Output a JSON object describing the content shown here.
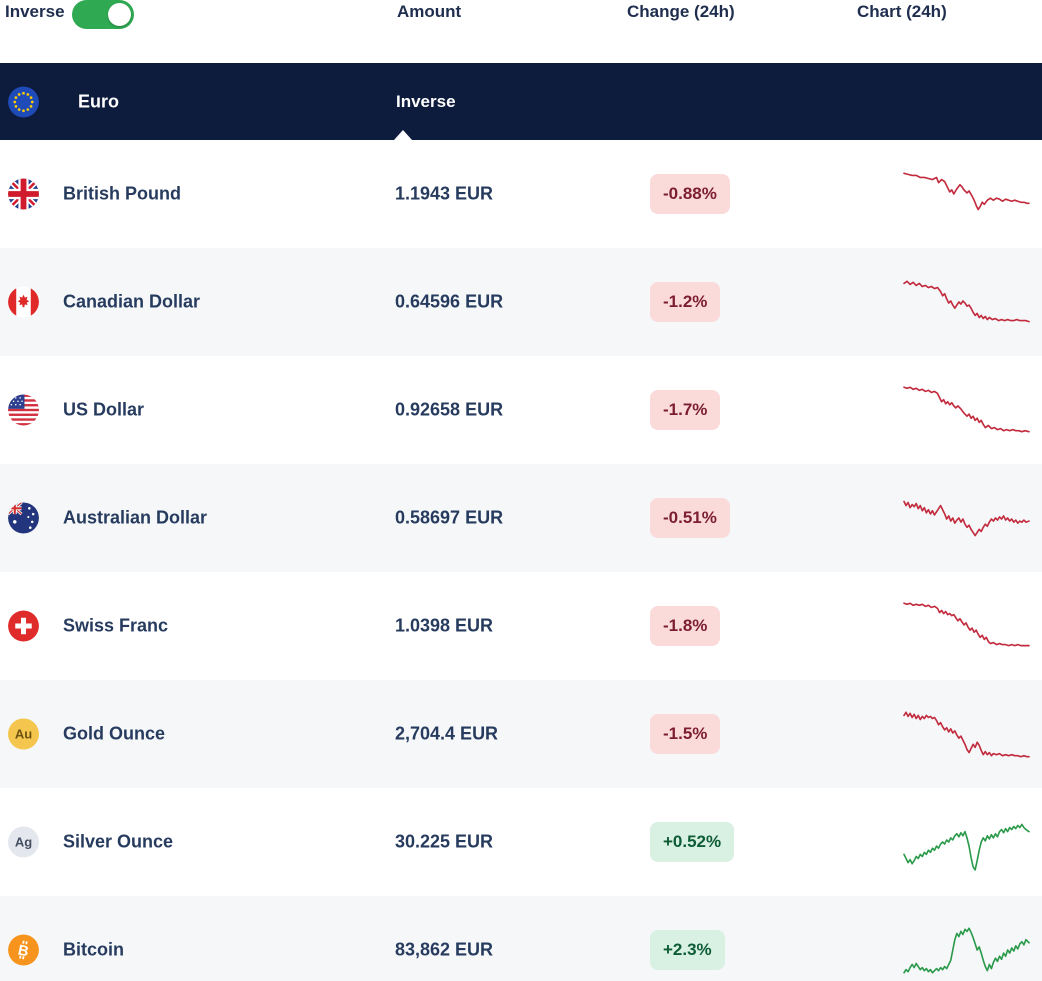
{
  "colors": {
    "navy_bar": "#0d1b3c",
    "header_text": "#1f2e4e",
    "row_text": "#263b5e",
    "row_alt_bg": "#f5f7f9",
    "toggle_on_green": "#2faa53",
    "badge_negative_bg": "#fbdada",
    "badge_negative_text": "#7c1e31",
    "badge_positive_bg": "#d8f1e2",
    "badge_positive_text": "#0e5c36",
    "sparkline_down": "#c22b3d",
    "sparkline_up": "#2c9a4b"
  },
  "header": {
    "inverse_label": "Inverse",
    "toggle_state": "on",
    "columns": [
      "Amount",
      "Change (24h)",
      "Chart (24h)"
    ]
  },
  "base": {
    "currency": "Euro",
    "flag_icon": "euro-flag-icon",
    "amount_mode_label": "Inverse"
  },
  "rows": [
    {
      "name": "British Pound",
      "icon": "uk-flag-icon",
      "amount": "1.1943 EUR",
      "change": "-0.88%",
      "direction": "down",
      "spark": "1,10 5,11 9,12 13,12 17,14 21,14 25,15 29,16 33,14 35,19 38,16 41,18 44,24 46,28 48,26 50,30 53,25 56,21 58,23 60,26 63,29 65,27 68,32 70,36 72,41 74,45 76,42 78,38 80,40 83,36 86,34 89,36 92,34 95,35 98,37 101,35 104,36 107,37 110,36 113,37 116,38 119,38 122,39 124,39"
    },
    {
      "name": "Canadian Dollar",
      "icon": "canada-flag-icon",
      "amount": "0.64596 EUR",
      "change": "-1.2%",
      "direction": "down",
      "spark": "1,12 4,10 7,13 10,11 13,14 16,12 19,15 22,14 25,16 28,15 31,17 34,16 37,20 39,24 41,22 43,27 45,31 47,29 49,33 51,36 53,33 55,30 57,32 59,29 61,31 63,34 65,33 67,36 69,40 71,43 73,41 75,45 77,43 79,46 81,44 83,47 85,45 88,47 91,46 94,48 97,47 100,48 103,47 106,48 109,48 112,47 115,48 118,48 121,48 124,49"
    },
    {
      "name": "US Dollar",
      "icon": "us-flag-icon",
      "amount": "0.92658 EUR",
      "change": "-1.7%",
      "direction": "down",
      "spark": "1,8 4,9 7,8 10,10 13,9 16,11 19,10 22,12 25,11 28,13 31,12 34,14 36,18 38,22 40,20 42,24 44,22 46,25 48,23 50,26 52,28 54,26 57,29 60,33 63,36 65,34 67,38 69,36 71,40 73,38 75,42 77,40 79,44 81,47 84,45 87,48 90,47 93,49 96,48 99,50 102,49 105,50 108,49 111,50 114,50 117,51 120,50 124,51"
    },
    {
      "name": "Australian Dollar",
      "icon": "australia-flag-icon",
      "amount": "0.58697 EUR",
      "change": "-0.51%",
      "direction": "down",
      "spark": "1,14 3,18 5,15 7,20 9,17 11,19 13,16 15,21 17,18 19,23 21,20 23,25 25,22 27,26 29,23 31,27 33,24 35,21 37,18 39,22 41,26 43,31 45,28 47,33 49,30 51,35 53,32 55,30 57,34 59,31 61,36 63,39 65,37 67,41 69,44 71,47 73,44 75,41 77,43 79,39 81,36 83,38 85,34 87,31 89,33 91,30 93,32 95,29 97,31 99,28 101,32 103,30 105,33 107,31 109,34 111,32 113,35 115,33 117,34 119,32 121,34 124,33"
    },
    {
      "name": "Swiss Franc",
      "icon": "switzerland-flag-icon",
      "amount": "1.0398 EUR",
      "change": "-1.8%",
      "direction": "down",
      "spark": "1,8 4,9 7,8 10,10 13,9 16,10 19,9 22,11 25,10 28,12 31,11 34,13 36,17 38,15 40,18 42,16 44,19 46,18 48,20 50,19 52,22 54,25 56,23 58,26 60,29 62,27 64,31 66,34 68,32 70,36 72,34 74,38 76,41 78,39 80,43 82,41 84,45 86,47 89,46 92,48 95,47 98,48 101,48 104,49 107,48 110,49 113,48 116,49 119,49 122,49 124,49"
    },
    {
      "name": "Gold Ounce",
      "icon": "gold-icon",
      "symbol": "Au",
      "amount": "2,704.4 EUR",
      "change": "-1.5%",
      "direction": "down",
      "spark": "1,12 3,9 5,13 7,10 9,14 11,11 13,15 15,12 17,16 19,13 21,15 23,12 25,14 27,13 29,15 31,14 33,17 35,21 37,19 39,23 41,26 43,24 45,28 47,25 49,29 51,27 53,31 55,34 57,32 59,36 61,40 63,45 65,48 67,44 69,40 71,43 73,38 75,41 77,46 79,50 81,47 83,50 85,48 87,51 89,49 92,50 95,49 98,51 101,50 104,51 107,50 110,51 113,51 116,52 119,51 122,52 124,52"
    },
    {
      "name": "Silver Ounce",
      "icon": "silver-icon",
      "symbol": "Ag",
      "amount": "30.225 EUR",
      "change": "+0.52%",
      "direction": "up",
      "spark": "1,42 3,46 5,50 7,47 9,51 11,48 13,44 15,46 17,42 19,44 21,40 23,42 25,38 27,40 29,36 31,38 33,34 35,36 37,32 39,30 41,32 43,28 45,30 47,26 49,28 51,24 53,22 55,25 57,21 59,24 61,20 63,26 65,34 67,45 69,54 71,57 73,48 75,38 77,30 79,26 81,29 83,24 85,27 87,23 89,26 91,22 93,25 95,20 97,18 99,21 101,17 103,20 105,16 107,18 109,15 111,17 113,14 115,16 117,13 119,16 121,18 124,20"
    },
    {
      "name": "Bitcoin",
      "icon": "bitcoin-icon",
      "symbol": "B",
      "amount": "83,862 EUR",
      "change": "+2.3%",
      "direction": "up",
      "spark": "1,52 3,49 5,51 7,47 9,44 11,47 13,43 15,46 17,49 19,47 21,50 23,48 25,51 27,49 29,52 31,50 33,48 35,50 37,47 39,49 41,46 43,48 45,44 47,40 49,30 51,20 53,14 55,17 57,12 59,15 61,10 63,12 65,9 67,13 69,18 71,24 73,30 75,27 77,33 79,40 81,46 83,50 85,44 87,48 89,42 91,38 93,41 95,36 97,39 99,33 101,36 103,30 105,33 107,28 109,31 111,26 113,29 115,24 117,22 119,25 121,20 124,23"
    }
  ]
}
